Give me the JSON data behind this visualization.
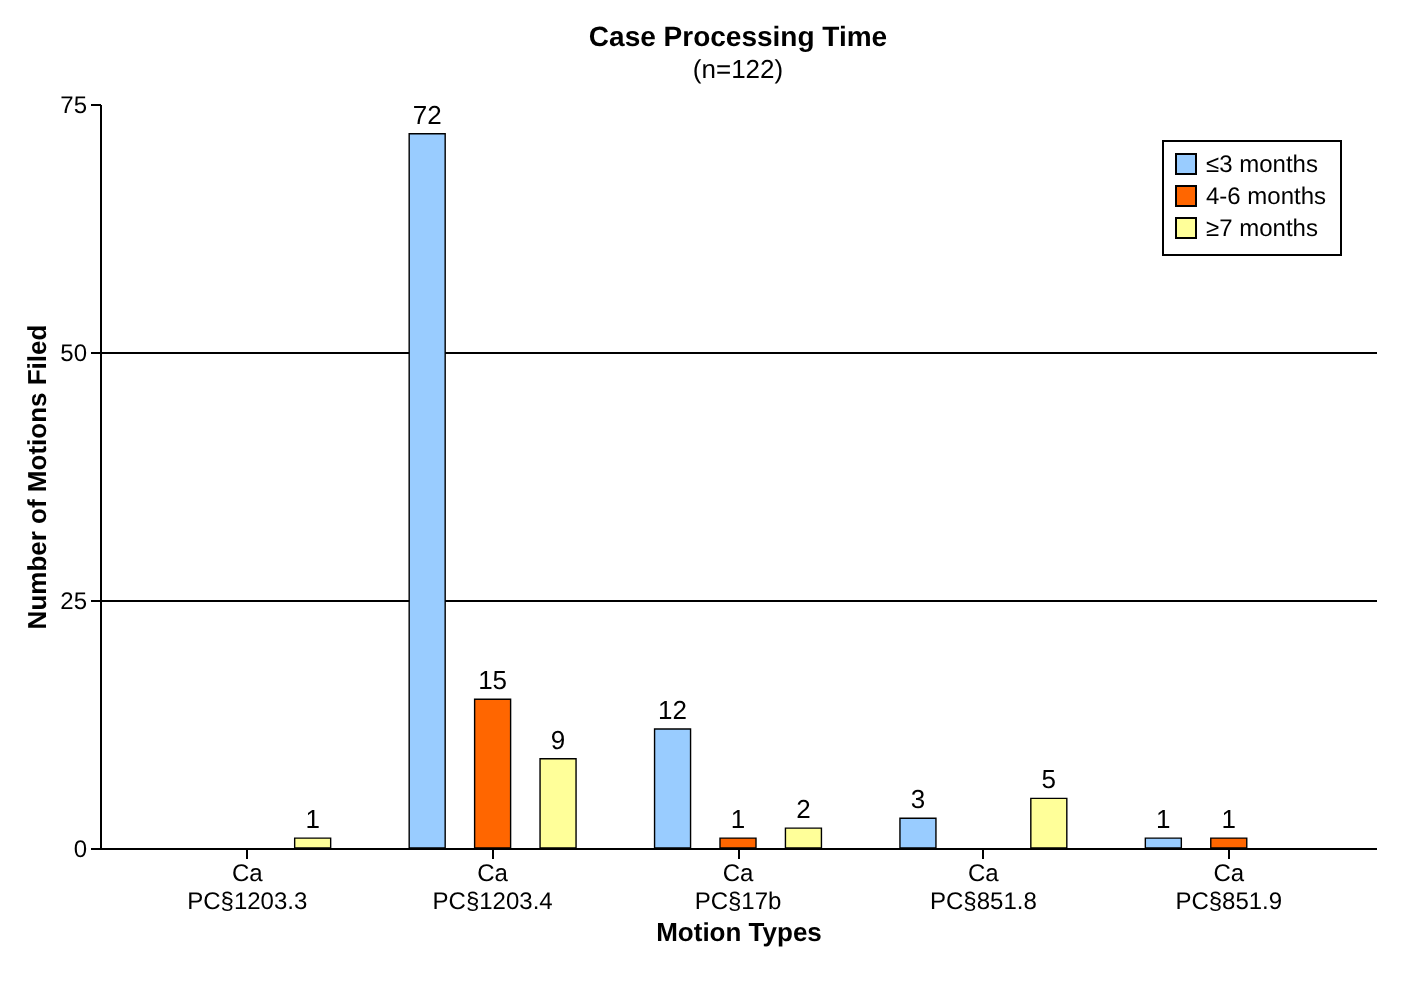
{
  "chart_data": {
    "type": "bar",
    "title": "Case Processing Time",
    "subtitle": "(n=122)",
    "xlabel": "Motion Types",
    "ylabel": "Number of Motions Filed",
    "categories": [
      "Ca PC§1203.3",
      "Ca PC§1203.4",
      "Ca PC§17b",
      "Ca PC§851.8",
      "Ca PC§851.9"
    ],
    "series": [
      {
        "name": "≤3 months",
        "color": "#99ccff",
        "values": [
          null,
          72,
          12,
          3,
          1
        ]
      },
      {
        "name": "4-6 months",
        "color": "#ff6600",
        "values": [
          null,
          15,
          1,
          null,
          1
        ]
      },
      {
        "name": "≥7 months",
        "color": "#ffff99",
        "values": [
          1,
          9,
          2,
          5,
          null
        ]
      }
    ],
    "ylim": [
      0,
      75
    ],
    "yticks": [
      0,
      25,
      50,
      75
    ],
    "grid": "y",
    "legend": "top right",
    "data_labels": true
  }
}
